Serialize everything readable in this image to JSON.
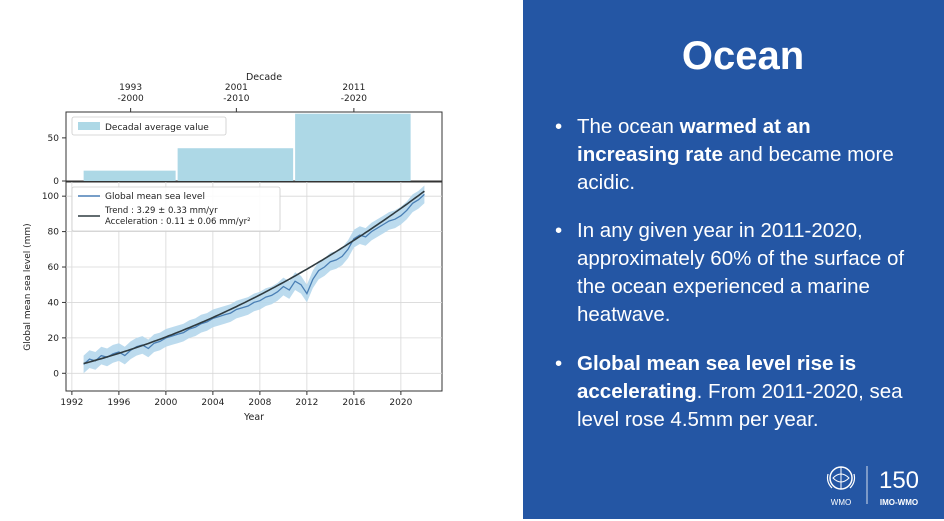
{
  "chart_data": [
    {
      "type": "bar",
      "title": "Decade",
      "categories": [
        "1993\n-2000",
        "2001\n-2010",
        "2011\n-2020"
      ],
      "category_lines": [
        [
          "1993",
          "-2000"
        ],
        [
          "2001",
          "-2010"
        ],
        [
          "2011",
          "-2020"
        ]
      ],
      "x_ranges": [
        [
          1993,
          2001
        ],
        [
          2001,
          2011
        ],
        [
          2011,
          2021
        ]
      ],
      "values": [
        12,
        38,
        78
      ],
      "legend": "Decadal average value",
      "ylim": [
        0,
        80
      ],
      "yticks": [
        "0",
        "50"
      ],
      "ytick_values": [
        0,
        50
      ],
      "bar_color": "#add8e6"
    },
    {
      "type": "line",
      "xlabel": "Year",
      "ylabel": "Global mean sea level (mm)",
      "xlim": [
        1991.5,
        2023.5
      ],
      "ylim": [
        -10,
        108
      ],
      "xticks": [
        "1992",
        "1996",
        "2000",
        "2004",
        "2008",
        "2012",
        "2016",
        "2020"
      ],
      "xtick_values": [
        1992,
        1996,
        2000,
        2004,
        2008,
        2012,
        2016,
        2020
      ],
      "yticks": [
        "0",
        "20",
        "40",
        "60",
        "80",
        "100"
      ],
      "ytick_values": [
        0,
        20,
        40,
        60,
        80,
        100
      ],
      "grid": true,
      "legend_position": "top-left",
      "series": [
        {
          "name": "Global mean sea level",
          "color": "#4a7fb5",
          "band_color": "#b5d7ec",
          "uncertainty": 5,
          "x": [
            1993,
            1993.5,
            1994,
            1994.5,
            1995,
            1995.5,
            1996,
            1996.5,
            1997,
            1997.5,
            1998,
            1998.5,
            1999,
            1999.5,
            2000,
            2000.5,
            2001,
            2001.5,
            2002,
            2002.5,
            2003,
            2003.5,
            2004,
            2004.5,
            2005,
            2005.5,
            2006,
            2006.5,
            2007,
            2007.5,
            2008,
            2008.5,
            2009,
            2009.5,
            2010,
            2010.5,
            2011,
            2011.5,
            2012,
            2012.5,
            2013,
            2013.5,
            2014,
            2014.5,
            2015,
            2015.5,
            2016,
            2016.5,
            2017,
            2017.5,
            2018,
            2018.5,
            2019,
            2019.5,
            2020,
            2020.5,
            2021,
            2021.5,
            2022
          ],
          "values": [
            5,
            8,
            7,
            10,
            9,
            11,
            12,
            10,
            13,
            15,
            16,
            14,
            17,
            18,
            20,
            21,
            22,
            23,
            25,
            26,
            28,
            29,
            31,
            32,
            33,
            34,
            36,
            37,
            38,
            40,
            41,
            43,
            44,
            46,
            49,
            47,
            52,
            50,
            45,
            53,
            58,
            60,
            63,
            64,
            66,
            70,
            76,
            78,
            77,
            80,
            82,
            84,
            86,
            87,
            89,
            92,
            96,
            98,
            101
          ]
        },
        {
          "name": "Trend : 3.29 ± 0.33 mm/yr",
          "name_line2": "Acceleration : 0.11 ± 0.06 mm/yr²",
          "color": "#2f3b40",
          "fit": {
            "x0": 1993,
            "y0": 5.5,
            "slope": 1.76,
            "curvature": 0.055
          }
        }
      ]
    }
  ],
  "panel": {
    "title": "Ocean",
    "background": "#2456a4",
    "bullets": [
      {
        "bold1": "",
        "normal1": "The ocean ",
        "bold2": "warmed at an increasing rate",
        "normal2": " and became more acidic."
      },
      {
        "bold1": "",
        "normal1": "In any given year in 2011-2020, approximately 60% of the surface of the ocean experienced a marine heatwave.",
        "bold2": "",
        "normal2": ""
      },
      {
        "bold1": "Global mean sea level rise is accelerating",
        "normal1": ". From 2011-2020, sea level rose 4.5mm per year.",
        "bold2": "",
        "normal2": ""
      }
    ],
    "bullet_symbol": "•",
    "logo_left_text": "WMO",
    "logo_right_number": "150",
    "logo_right_text": "IMO-WMO"
  }
}
